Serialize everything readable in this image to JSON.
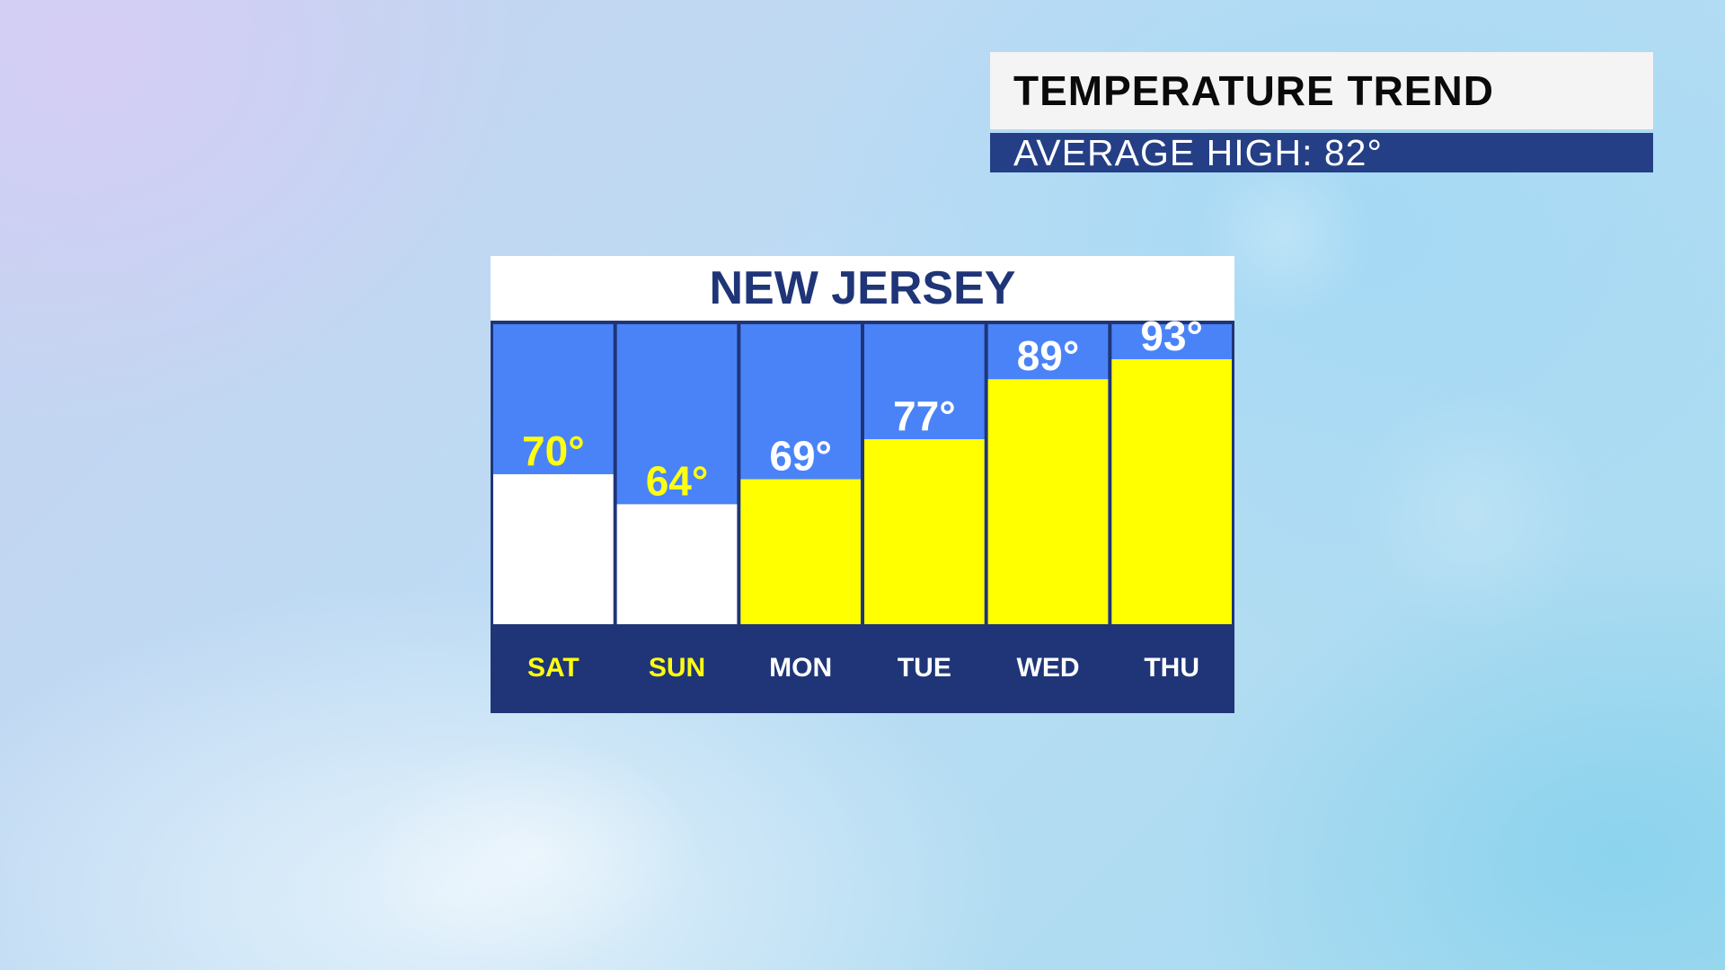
{
  "title": {
    "main": "TEMPERATURE TREND",
    "subtitle": "AVERAGE HIGH:  82°"
  },
  "panel": {
    "header": "NEW JERSEY"
  },
  "colors": {
    "column_bg": "#4a83f7",
    "frame": "#1f3577",
    "day_bar": "#1f3577",
    "bar_below_avg": "#ffffff",
    "bar_above_avg": "#ffff00",
    "label_below_avg": "#ffff10",
    "label_above_avg": "#ffffff"
  },
  "chart_data": {
    "type": "bar",
    "title": "NEW JERSEY",
    "categories": [
      "SAT",
      "SUN",
      "MON",
      "TUE",
      "WED",
      "THU"
    ],
    "values": [
      70,
      64,
      69,
      77,
      89,
      93
    ],
    "value_labels": [
      "70°",
      "64°",
      "69°",
      "77°",
      "89°",
      "93°"
    ],
    "bar_colors": [
      "#ffffff",
      "#ffffff",
      "#ffff00",
      "#ffff00",
      "#ffff00",
      "#ffff00"
    ],
    "category_label_colors": [
      "#ffff10",
      "#ffff10",
      "#ffffff",
      "#ffffff",
      "#ffffff",
      "#ffffff"
    ],
    "value_label_colors": [
      "#ffff10",
      "#ffff10",
      "#ffffff",
      "#ffffff",
      "#ffffff",
      "#ffffff"
    ],
    "xlabel": "",
    "ylabel": "",
    "ylim": [
      40,
      100
    ],
    "grid": false,
    "legend": "none"
  }
}
